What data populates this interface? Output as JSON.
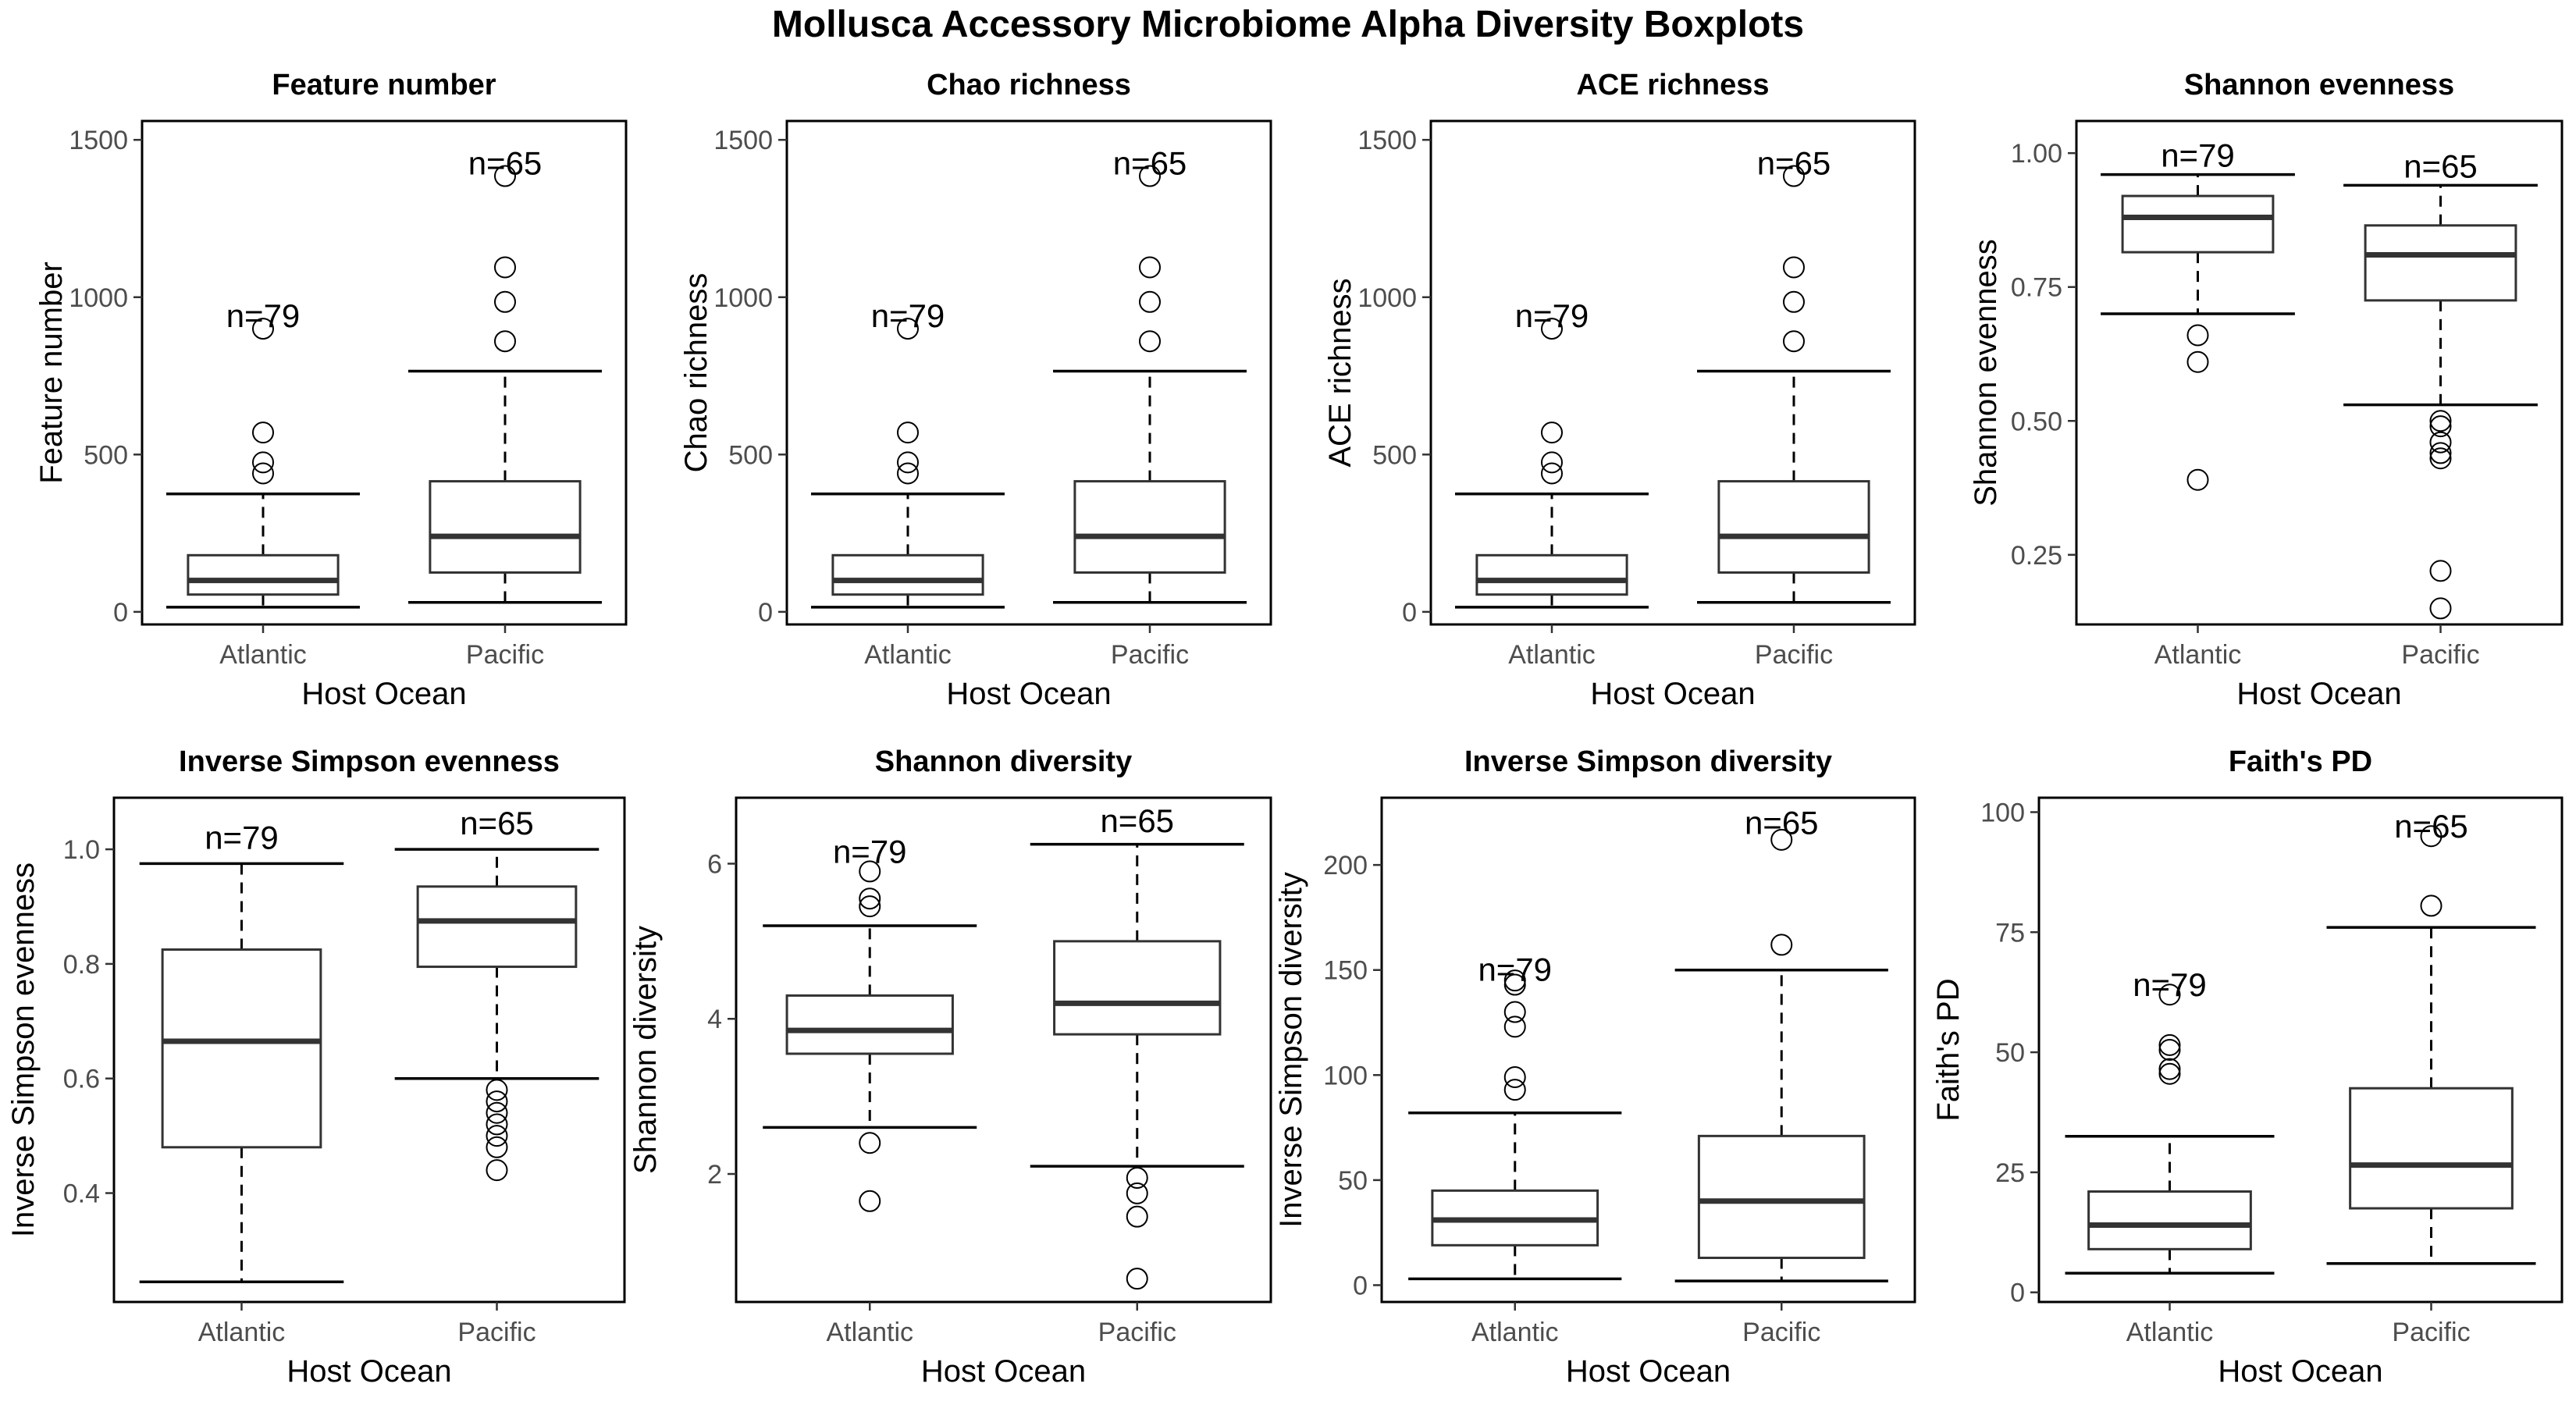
{
  "title": "Mollusca Accessory Microbiome Alpha Diversity Boxplots",
  "chart_data": [
    {
      "type": "box",
      "title": "Feature number",
      "xlabel": "Host Ocean",
      "ylabel": "Feature number",
      "ylim": [
        -40,
        1560
      ],
      "yticks": [
        0,
        500,
        1000,
        1500
      ],
      "categories": [
        "Atlantic",
        "Pacific"
      ],
      "boxes": [
        {
          "category": "Atlantic",
          "n_label": "n=79",
          "whisker_low": 15,
          "q1": 55,
          "median": 100,
          "q3": 180,
          "whisker_high": 375,
          "outliers": [
            440,
            475,
            570,
            900
          ],
          "label_y": 940
        },
        {
          "category": "Pacific",
          "n_label": "n=65",
          "whisker_low": 30,
          "q1": 125,
          "median": 240,
          "q3": 415,
          "whisker_high": 765,
          "outliers": [
            860,
            985,
            1095,
            1385
          ],
          "label_y": 1425
        }
      ]
    },
    {
      "type": "box",
      "title": "Chao richness",
      "xlabel": "Host Ocean",
      "ylabel": "Chao richness",
      "ylim": [
        -40,
        1560
      ],
      "yticks": [
        0,
        500,
        1000,
        1500
      ],
      "categories": [
        "Atlantic",
        "Pacific"
      ],
      "boxes": [
        {
          "category": "Atlantic",
          "n_label": "n=79",
          "whisker_low": 15,
          "q1": 55,
          "median": 100,
          "q3": 180,
          "whisker_high": 375,
          "outliers": [
            440,
            475,
            570,
            900
          ],
          "label_y": 940
        },
        {
          "category": "Pacific",
          "n_label": "n=65",
          "whisker_low": 30,
          "q1": 125,
          "median": 240,
          "q3": 415,
          "whisker_high": 765,
          "outliers": [
            860,
            985,
            1095,
            1385
          ],
          "label_y": 1425
        }
      ]
    },
    {
      "type": "box",
      "title": "ACE richness",
      "xlabel": "Host Ocean",
      "ylabel": "ACE richness",
      "ylim": [
        -40,
        1560
      ],
      "yticks": [
        0,
        500,
        1000,
        1500
      ],
      "categories": [
        "Atlantic",
        "Pacific"
      ],
      "boxes": [
        {
          "category": "Atlantic",
          "n_label": "n=79",
          "whisker_low": 15,
          "q1": 55,
          "median": 100,
          "q3": 180,
          "whisker_high": 375,
          "outliers": [
            440,
            475,
            570,
            900
          ],
          "label_y": 940
        },
        {
          "category": "Pacific",
          "n_label": "n=65",
          "whisker_low": 30,
          "q1": 125,
          "median": 240,
          "q3": 415,
          "whisker_high": 765,
          "outliers": [
            860,
            985,
            1095,
            1385
          ],
          "label_y": 1425
        }
      ]
    },
    {
      "type": "box",
      "title": "Shannon evenness",
      "xlabel": "Host Ocean",
      "ylabel": "Shannon evenness",
      "ylim": [
        0.12,
        1.06
      ],
      "yticks": [
        0.25,
        0.5,
        0.75,
        1.0
      ],
      "yticklabels": [
        "0.25",
        "0.50",
        "0.75",
        "1.00"
      ],
      "categories": [
        "Atlantic",
        "Pacific"
      ],
      "boxes": [
        {
          "category": "Atlantic",
          "n_label": "n=79",
          "whisker_low": 0.7,
          "q1": 0.815,
          "median": 0.88,
          "q3": 0.92,
          "whisker_high": 0.96,
          "outliers": [
            0.39,
            0.61,
            0.66
          ],
          "label_y": 0.995
        },
        {
          "category": "Pacific",
          "n_label": "n=65",
          "whisker_low": 0.53,
          "q1": 0.725,
          "median": 0.81,
          "q3": 0.865,
          "whisker_high": 0.94,
          "outliers": [
            0.15,
            0.22,
            0.43,
            0.44,
            0.46,
            0.49,
            0.5
          ],
          "label_y": 0.975
        }
      ]
    },
    {
      "type": "box",
      "title": "Inverse Simpson evenness",
      "xlabel": "Host Ocean",
      "ylabel": "Inverse Simpson evenness",
      "ylim": [
        0.21,
        1.09
      ],
      "yticks": [
        0.4,
        0.6,
        0.8,
        1.0
      ],
      "yticklabels": [
        "0.4",
        "0.6",
        "0.8",
        "1.0"
      ],
      "categories": [
        "Atlantic",
        "Pacific"
      ],
      "boxes": [
        {
          "category": "Atlantic",
          "n_label": "n=79",
          "whisker_low": 0.245,
          "q1": 0.48,
          "median": 0.665,
          "q3": 0.825,
          "whisker_high": 0.975,
          "outliers": [],
          "label_y": 1.02
        },
        {
          "category": "Pacific",
          "n_label": "n=65",
          "whisker_low": 0.6,
          "q1": 0.795,
          "median": 0.875,
          "q3": 0.935,
          "whisker_high": 1.0,
          "outliers": [
            0.44,
            0.48,
            0.5,
            0.52,
            0.54,
            0.56,
            0.58
          ],
          "label_y": 1.045
        }
      ]
    },
    {
      "type": "box",
      "title": "Shannon diversity",
      "xlabel": "Host Ocean",
      "ylabel": "Shannon diversity",
      "ylim": [
        0.35,
        6.85
      ],
      "yticks": [
        2,
        4,
        6
      ],
      "categories": [
        "Atlantic",
        "Pacific"
      ],
      "boxes": [
        {
          "category": "Atlantic",
          "n_label": "n=79",
          "whisker_low": 2.6,
          "q1": 3.55,
          "median": 3.85,
          "q3": 4.3,
          "whisker_high": 5.2,
          "outliers": [
            1.65,
            2.4,
            5.45,
            5.55,
            5.9
          ],
          "label_y": 6.15
        },
        {
          "category": "Pacific",
          "n_label": "n=65",
          "whisker_low": 2.1,
          "q1": 3.8,
          "median": 4.2,
          "q3": 5.0,
          "whisker_high": 6.25,
          "outliers": [
            0.65,
            1.45,
            1.75,
            1.95
          ],
          "label_y": 6.55
        }
      ]
    },
    {
      "type": "box",
      "title": "Inverse Simpson diversity",
      "xlabel": "Host Ocean",
      "ylabel": "Inverse Simpson diversity",
      "ylim": [
        -8,
        232
      ],
      "yticks": [
        0,
        50,
        100,
        150,
        200
      ],
      "categories": [
        "Atlantic",
        "Pacific"
      ],
      "boxes": [
        {
          "category": "Atlantic",
          "n_label": "n=79",
          "whisker_low": 3,
          "q1": 19,
          "median": 31,
          "q3": 45,
          "whisker_high": 82,
          "outliers": [
            93,
            99,
            123,
            130,
            143,
            145
          ],
          "label_y": 150
        },
        {
          "category": "Pacific",
          "n_label": "n=65",
          "whisker_low": 2,
          "q1": 13,
          "median": 40,
          "q3": 71,
          "whisker_high": 150,
          "outliers": [
            162,
            212
          ],
          "label_y": 220
        }
      ]
    },
    {
      "type": "box",
      "title": "Faith's PD",
      "xlabel": "Host Ocean",
      "ylabel": "Faith's PD",
      "ylim": [
        -2,
        103
      ],
      "yticks": [
        0,
        25,
        50,
        75,
        100
      ],
      "categories": [
        "Atlantic",
        "Pacific"
      ],
      "boxes": [
        {
          "category": "Atlantic",
          "n_label": "n=79",
          "whisker_low": 4,
          "q1": 9,
          "median": 14,
          "q3": 21,
          "whisker_high": 32.5,
          "outliers": [
            45.5,
            46.5,
            50.5,
            51.5,
            62
          ],
          "label_y": 64
        },
        {
          "category": "Pacific",
          "n_label": "n=65",
          "whisker_low": 6,
          "q1": 17.5,
          "median": 26.5,
          "q3": 42.5,
          "whisker_high": 76,
          "outliers": [
            80.5,
            95
          ],
          "label_y": 97
        }
      ]
    }
  ]
}
